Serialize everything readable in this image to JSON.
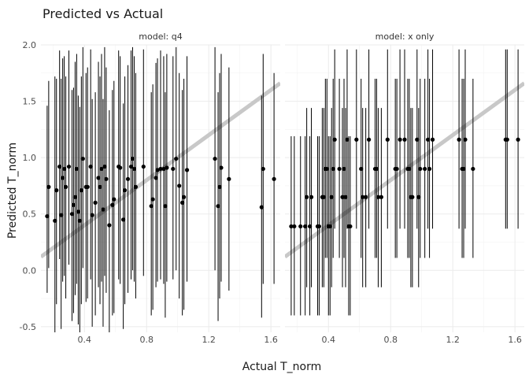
{
  "chart_data": {
    "type": "scatter",
    "title": "Predicted vs Actual",
    "xlabel": "Actual T_norm",
    "ylabel": "Predicted T_norm",
    "xlim": [
      0.12,
      1.66
    ],
    "ylim": [
      -0.55,
      2.0
    ],
    "x_ticks": [
      0.4,
      0.8,
      1.2,
      1.6
    ],
    "y_ticks": [
      -0.5,
      0.0,
      0.5,
      1.0,
      1.5,
      2.0
    ],
    "reference_line": {
      "slope": 1,
      "intercept": 0,
      "color": "#c8c8c8"
    },
    "point_color": "#000000",
    "panels": [
      {
        "strip": "model: q4",
        "points": [
          {
            "x": 0.16,
            "y": 0.48,
            "lo": -0.2,
            "hi": 1.46
          },
          {
            "x": 0.17,
            "y": 0.74,
            "lo": 0.02,
            "hi": 1.68
          },
          {
            "x": 0.21,
            "y": 0.44,
            "lo": -0.55,
            "hi": 1.72
          },
          {
            "x": 0.22,
            "y": 0.71,
            "lo": -0.3,
            "hi": 1.7
          },
          {
            "x": 0.24,
            "y": 0.92,
            "lo": 0.1,
            "hi": 1.95
          },
          {
            "x": 0.25,
            "y": 0.49,
            "lo": -0.52,
            "hi": 1.7
          },
          {
            "x": 0.26,
            "y": 0.82,
            "lo": -0.1,
            "hi": 1.88
          },
          {
            "x": 0.27,
            "y": 0.9,
            "lo": -0.05,
            "hi": 1.9
          },
          {
            "x": 0.28,
            "y": 0.74,
            "lo": -0.25,
            "hi": 1.72
          },
          {
            "x": 0.3,
            "y": 0.92,
            "lo": 0.05,
            "hi": 1.95
          },
          {
            "x": 0.32,
            "y": 0.5,
            "lo": -0.45,
            "hi": 1.6
          },
          {
            "x": 0.33,
            "y": 0.58,
            "lo": -0.38,
            "hi": 1.62
          },
          {
            "x": 0.34,
            "y": 0.65,
            "lo": -0.22,
            "hi": 1.85
          },
          {
            "x": 0.35,
            "y": 0.9,
            "lo": -0.12,
            "hi": 1.92
          },
          {
            "x": 0.36,
            "y": 0.52,
            "lo": -0.48,
            "hi": 1.55
          },
          {
            "x": 0.37,
            "y": 0.44,
            "lo": -0.55,
            "hi": 1.45
          },
          {
            "x": 0.38,
            "y": 0.71,
            "lo": -0.3,
            "hi": 1.72
          },
          {
            "x": 0.39,
            "y": 0.99,
            "lo": 0.02,
            "hi": 1.98
          },
          {
            "x": 0.41,
            "y": 0.74,
            "lo": -0.28,
            "hi": 1.75
          },
          {
            "x": 0.42,
            "y": 0.74,
            "lo": -0.25,
            "hi": 1.8
          },
          {
            "x": 0.44,
            "y": 0.92,
            "lo": -0.08,
            "hi": 1.96
          },
          {
            "x": 0.45,
            "y": 0.49,
            "lo": -0.5,
            "hi": 1.52
          },
          {
            "x": 0.47,
            "y": 0.6,
            "lo": -0.4,
            "hi": 1.58
          },
          {
            "x": 0.49,
            "y": 0.82,
            "lo": -0.15,
            "hi": 1.85
          },
          {
            "x": 0.5,
            "y": 0.74,
            "lo": -0.3,
            "hi": 1.72
          },
          {
            "x": 0.51,
            "y": 0.9,
            "lo": -0.1,
            "hi": 1.92
          },
          {
            "x": 0.52,
            "y": 0.54,
            "lo": -0.5,
            "hi": 1.52
          },
          {
            "x": 0.53,
            "y": 0.92,
            "lo": -0.05,
            "hi": 1.98
          },
          {
            "x": 0.54,
            "y": 0.81,
            "lo": -0.2,
            "hi": 1.8
          },
          {
            "x": 0.56,
            "y": 0.4,
            "lo": -0.55,
            "hi": 1.42
          },
          {
            "x": 0.58,
            "y": 0.58,
            "lo": -0.4,
            "hi": 1.6
          },
          {
            "x": 0.59,
            "y": 0.63,
            "lo": -0.38,
            "hi": 1.68
          },
          {
            "x": 0.62,
            "y": 0.92,
            "lo": -0.08,
            "hi": 1.95
          },
          {
            "x": 0.63,
            "y": 0.91,
            "lo": -0.12,
            "hi": 1.9
          },
          {
            "x": 0.65,
            "y": 0.45,
            "lo": -0.52,
            "hi": 1.48
          },
          {
            "x": 0.66,
            "y": 0.71,
            "lo": -0.3,
            "hi": 1.72
          },
          {
            "x": 0.68,
            "y": 0.81,
            "lo": -0.2,
            "hi": 1.82
          },
          {
            "x": 0.7,
            "y": 0.92,
            "lo": -0.08,
            "hi": 1.95
          },
          {
            "x": 0.71,
            "y": 0.99,
            "lo": 0.0,
            "hi": 1.98
          },
          {
            "x": 0.72,
            "y": 0.9,
            "lo": -0.1,
            "hi": 1.9
          },
          {
            "x": 0.73,
            "y": 0.74,
            "lo": -0.25,
            "hi": 1.75
          },
          {
            "x": 0.78,
            "y": 0.92,
            "lo": -0.05,
            "hi": 1.96
          },
          {
            "x": 0.83,
            "y": 0.57,
            "lo": -0.4,
            "hi": 1.58
          },
          {
            "x": 0.84,
            "y": 0.63,
            "lo": -0.35,
            "hi": 1.65
          },
          {
            "x": 0.86,
            "y": 0.82,
            "lo": -0.15,
            "hi": 1.84
          },
          {
            "x": 0.87,
            "y": 0.89,
            "lo": -0.1,
            "hi": 1.88
          },
          {
            "x": 0.89,
            "y": 0.9,
            "lo": -0.08,
            "hi": 1.95
          },
          {
            "x": 0.91,
            "y": 0.9,
            "lo": -0.12,
            "hi": 1.9
          },
          {
            "x": 0.92,
            "y": 0.57,
            "lo": -0.42,
            "hi": 1.58
          },
          {
            "x": 0.93,
            "y": 0.91,
            "lo": -0.1,
            "hi": 1.92
          },
          {
            "x": 0.97,
            "y": 0.9,
            "lo": -0.08,
            "hi": 1.9
          },
          {
            "x": 0.99,
            "y": 0.99,
            "lo": 0.0,
            "hi": 1.98
          },
          {
            "x": 1.01,
            "y": 0.75,
            "lo": -0.25,
            "hi": 1.75
          },
          {
            "x": 1.03,
            "y": 0.6,
            "lo": -0.4,
            "hi": 1.6
          },
          {
            "x": 1.04,
            "y": 0.65,
            "lo": -0.35,
            "hi": 1.7
          },
          {
            "x": 1.06,
            "y": 0.89,
            "lo": -0.1,
            "hi": 1.9
          },
          {
            "x": 1.24,
            "y": 0.99,
            "lo": 0.0,
            "hi": 1.98
          },
          {
            "x": 1.26,
            "y": 0.57,
            "lo": -0.45,
            "hi": 1.58
          },
          {
            "x": 1.27,
            "y": 0.74,
            "lo": -0.25,
            "hi": 1.75
          },
          {
            "x": 1.28,
            "y": 0.91,
            "lo": -0.1,
            "hi": 1.92
          },
          {
            "x": 1.33,
            "y": 0.81,
            "lo": -0.18,
            "hi": 1.8
          },
          {
            "x": 1.54,
            "y": 0.56,
            "lo": -0.42,
            "hi": 1.55
          },
          {
            "x": 1.55,
            "y": 0.9,
            "lo": -0.12,
            "hi": 1.92
          },
          {
            "x": 1.62,
            "y": 0.81,
            "lo": -0.12,
            "hi": 1.75
          }
        ]
      },
      {
        "strip": "model: x only",
        "points": [
          {
            "x": 0.16,
            "y": 0.39,
            "lo": -0.4,
            "hi": 1.19
          },
          {
            "x": 0.18,
            "y": 0.39,
            "lo": -0.4,
            "hi": 1.19
          },
          {
            "x": 0.22,
            "y": 0.39,
            "lo": -0.4,
            "hi": 1.19
          },
          {
            "x": 0.25,
            "y": 0.39,
            "lo": -0.4,
            "hi": 1.19
          },
          {
            "x": 0.26,
            "y": 0.65,
            "lo": -0.15,
            "hi": 1.44
          },
          {
            "x": 0.28,
            "y": 0.39,
            "lo": -0.4,
            "hi": 1.19
          },
          {
            "x": 0.29,
            "y": 0.65,
            "lo": -0.15,
            "hi": 1.44
          },
          {
            "x": 0.33,
            "y": 0.39,
            "lo": -0.4,
            "hi": 1.19
          },
          {
            "x": 0.34,
            "y": 0.39,
            "lo": -0.4,
            "hi": 1.19
          },
          {
            "x": 0.36,
            "y": 0.65,
            "lo": -0.15,
            "hi": 1.44
          },
          {
            "x": 0.37,
            "y": 0.65,
            "lo": -0.15,
            "hi": 1.44
          },
          {
            "x": 0.38,
            "y": 0.9,
            "lo": 0.11,
            "hi": 1.7
          },
          {
            "x": 0.39,
            "y": 0.9,
            "lo": 0.11,
            "hi": 1.7
          },
          {
            "x": 0.4,
            "y": 0.39,
            "lo": -0.4,
            "hi": 1.19
          },
          {
            "x": 0.41,
            "y": 0.39,
            "lo": -0.4,
            "hi": 1.19
          },
          {
            "x": 0.42,
            "y": 0.65,
            "lo": -0.15,
            "hi": 1.44
          },
          {
            "x": 0.43,
            "y": 0.9,
            "lo": 0.11,
            "hi": 1.7
          },
          {
            "x": 0.44,
            "y": 1.16,
            "lo": 0.37,
            "hi": 1.96
          },
          {
            "x": 0.47,
            "y": 0.9,
            "lo": 0.11,
            "hi": 1.7
          },
          {
            "x": 0.49,
            "y": 0.65,
            "lo": -0.15,
            "hi": 1.44
          },
          {
            "x": 0.5,
            "y": 0.9,
            "lo": 0.11,
            "hi": 1.7
          },
          {
            "x": 0.51,
            "y": 0.65,
            "lo": -0.15,
            "hi": 1.44
          },
          {
            "x": 0.52,
            "y": 1.16,
            "lo": 0.37,
            "hi": 1.96
          },
          {
            "x": 0.53,
            "y": 0.39,
            "lo": -0.4,
            "hi": 1.19
          },
          {
            "x": 0.54,
            "y": 0.39,
            "lo": -0.4,
            "hi": 1.19
          },
          {
            "x": 0.58,
            "y": 1.16,
            "lo": 0.37,
            "hi": 1.96
          },
          {
            "x": 0.61,
            "y": 0.9,
            "lo": 0.11,
            "hi": 1.7
          },
          {
            "x": 0.62,
            "y": 0.65,
            "lo": -0.15,
            "hi": 1.44
          },
          {
            "x": 0.64,
            "y": 0.65,
            "lo": -0.15,
            "hi": 1.44
          },
          {
            "x": 0.66,
            "y": 1.16,
            "lo": 0.37,
            "hi": 1.96
          },
          {
            "x": 0.7,
            "y": 0.9,
            "lo": 0.11,
            "hi": 1.7
          },
          {
            "x": 0.71,
            "y": 0.9,
            "lo": 0.11,
            "hi": 1.7
          },
          {
            "x": 0.72,
            "y": 0.65,
            "lo": -0.15,
            "hi": 1.44
          },
          {
            "x": 0.74,
            "y": 0.65,
            "lo": -0.15,
            "hi": 1.44
          },
          {
            "x": 0.78,
            "y": 1.16,
            "lo": 0.37,
            "hi": 1.96
          },
          {
            "x": 0.83,
            "y": 0.9,
            "lo": 0.11,
            "hi": 1.7
          },
          {
            "x": 0.84,
            "y": 0.9,
            "lo": 0.11,
            "hi": 1.7
          },
          {
            "x": 0.86,
            "y": 1.16,
            "lo": 0.37,
            "hi": 1.96
          },
          {
            "x": 0.89,
            "y": 1.16,
            "lo": 0.37,
            "hi": 1.96
          },
          {
            "x": 0.91,
            "y": 0.9,
            "lo": 0.11,
            "hi": 1.7
          },
          {
            "x": 0.92,
            "y": 0.9,
            "lo": 0.11,
            "hi": 1.7
          },
          {
            "x": 0.93,
            "y": 0.65,
            "lo": -0.15,
            "hi": 1.44
          },
          {
            "x": 0.94,
            "y": 0.65,
            "lo": -0.15,
            "hi": 1.44
          },
          {
            "x": 0.97,
            "y": 1.16,
            "lo": 0.37,
            "hi": 1.96
          },
          {
            "x": 0.98,
            "y": 0.65,
            "lo": -0.15,
            "hi": 1.44
          },
          {
            "x": 0.99,
            "y": 0.9,
            "lo": 0.11,
            "hi": 1.7
          },
          {
            "x": 1.02,
            "y": 0.9,
            "lo": 0.11,
            "hi": 1.7
          },
          {
            "x": 1.04,
            "y": 1.16,
            "lo": 0.37,
            "hi": 1.96
          },
          {
            "x": 1.05,
            "y": 0.9,
            "lo": 0.11,
            "hi": 1.7
          },
          {
            "x": 1.07,
            "y": 1.16,
            "lo": 0.37,
            "hi": 1.96
          },
          {
            "x": 1.24,
            "y": 1.16,
            "lo": 0.37,
            "hi": 1.96
          },
          {
            "x": 1.26,
            "y": 0.9,
            "lo": 0.11,
            "hi": 1.7
          },
          {
            "x": 1.27,
            "y": 0.9,
            "lo": 0.11,
            "hi": 1.7
          },
          {
            "x": 1.28,
            "y": 1.16,
            "lo": 0.37,
            "hi": 1.96
          },
          {
            "x": 1.33,
            "y": 0.9,
            "lo": 0.11,
            "hi": 1.7
          },
          {
            "x": 1.54,
            "y": 1.16,
            "lo": 0.37,
            "hi": 1.96
          },
          {
            "x": 1.55,
            "y": 1.16,
            "lo": 0.37,
            "hi": 1.96
          },
          {
            "x": 1.62,
            "y": 1.16,
            "lo": 0.37,
            "hi": 1.96
          }
        ]
      }
    ]
  }
}
